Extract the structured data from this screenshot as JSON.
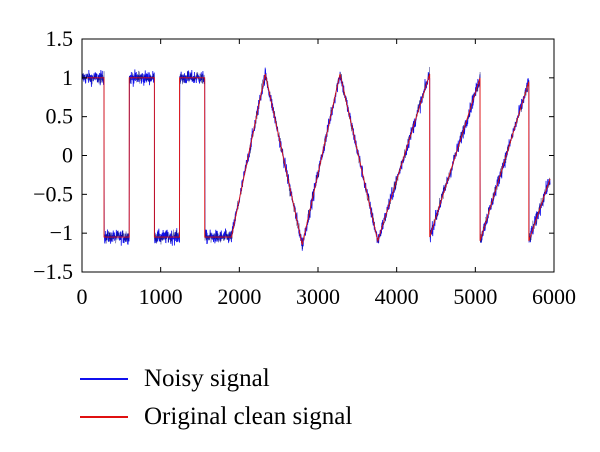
{
  "chart_data": {
    "type": "line",
    "title": "",
    "xlabel": "",
    "ylabel": "",
    "xlim": [
      0,
      6000
    ],
    "ylim": [
      -1.5,
      1.5
    ],
    "x_ticks": [
      0,
      1000,
      2000,
      3000,
      4000,
      5000,
      6000
    ],
    "x_tick_labels": [
      "0",
      "1000",
      "2000",
      "3000",
      "4000",
      "5000",
      "6000"
    ],
    "y_ticks": [
      1.5,
      1,
      0.5,
      0,
      -0.5,
      -1,
      -1.5
    ],
    "y_tick_labels": [
      "1.5",
      "1",
      "0.5",
      "0",
      "−0.5",
      "−1",
      "−1.5"
    ],
    "grid": false,
    "legend_position": "below",
    "series": [
      {
        "name": "Noisy signal",
        "color": "#1010ee",
        "description_points": "clean signal plus noise of about 0.08",
        "x": [
          0,
          280,
          280,
          600,
          600,
          920,
          920,
          1240,
          1240,
          1560,
          1560,
          1900,
          2330,
          2800,
          3280,
          3760,
          4420,
          4420,
          5060,
          5060,
          5680,
          5680,
          5950
        ],
        "values": [
          1.0,
          1.0,
          -1.05,
          -1.05,
          1.0,
          1.0,
          -1.05,
          -1.05,
          1.0,
          1.0,
          -1.05,
          -1.05,
          1.05,
          -1.15,
          1.05,
          -1.1,
          1.05,
          -1.05,
          1.0,
          -1.1,
          0.95,
          -1.1,
          -0.3
        ]
      },
      {
        "name": "Original clean signal",
        "color": "#e01010",
        "x": [
          0,
          280,
          280,
          600,
          600,
          920,
          920,
          1240,
          1240,
          1560,
          1560,
          1900,
          2330,
          2800,
          3280,
          3760,
          4420,
          4420,
          5060,
          5060,
          5680,
          5680,
          5950
        ],
        "values": [
          1.0,
          1.0,
          -1.05,
          -1.05,
          1.0,
          1.0,
          -1.05,
          -1.05,
          1.0,
          1.0,
          -1.05,
          -1.05,
          1.05,
          -1.15,
          1.05,
          -1.1,
          1.05,
          -1.05,
          1.0,
          -1.1,
          0.95,
          -1.1,
          -0.3
        ]
      }
    ]
  },
  "legend": {
    "items": [
      {
        "label": "Noisy signal",
        "color": "#1010ee"
      },
      {
        "label": "Original clean signal",
        "color": "#e01010"
      }
    ]
  }
}
